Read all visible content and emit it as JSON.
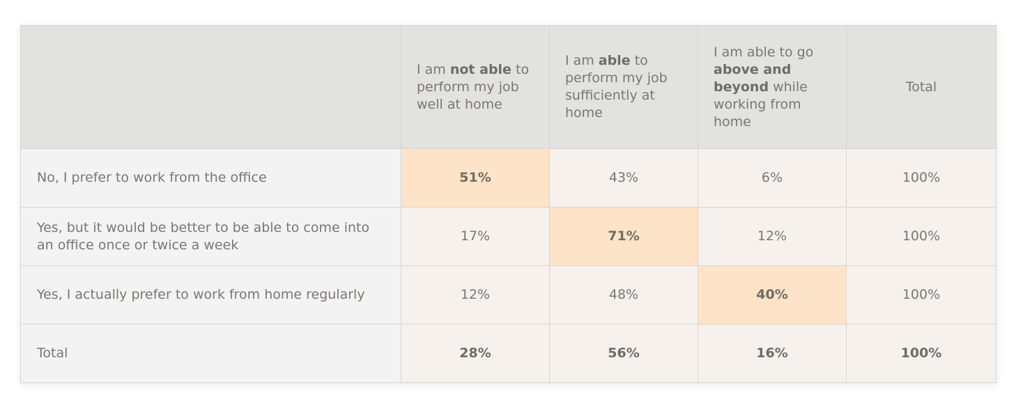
{
  "chart_data": {
    "type": "table",
    "title": "",
    "columns": [
      {
        "parts": [
          {
            "t": "I am "
          },
          {
            "t": "not able",
            "b": true
          },
          {
            "t": " to perform my job well at home"
          }
        ]
      },
      {
        "parts": [
          {
            "t": "I am "
          },
          {
            "t": "able",
            "b": true
          },
          {
            "t": " to perform my job sufficiently at home"
          }
        ]
      },
      {
        "parts": [
          {
            "t": "I am able to go "
          },
          {
            "t": "above and beyond",
            "b": true
          },
          {
            "t": " while working from home"
          }
        ]
      },
      {
        "parts": [
          {
            "t": "Total"
          }
        ]
      }
    ],
    "rows": [
      {
        "label": "No, I prefer to work from the office",
        "values": [
          "51%",
          "43%",
          "6%",
          "100%"
        ],
        "highlight": 0
      },
      {
        "label": "Yes, but it would be better to be able to come into an office once or twice a week",
        "values": [
          "17%",
          "71%",
          "12%",
          "100%"
        ],
        "highlight": 1
      },
      {
        "label": "Yes, I actually prefer to work from home regularly",
        "values": [
          "12%",
          "48%",
          "40%",
          "100%"
        ],
        "highlight": 2
      },
      {
        "label": "Total",
        "values": [
          "28%",
          "56%",
          "16%",
          "100%"
        ],
        "highlight": -1,
        "is_total": true
      }
    ],
    "colors": {
      "highlight": "#fde3c7",
      "cell": "#f6f1ec",
      "header": "#e2e2e1",
      "row_label": "#f3f3f3",
      "text": "#7a7770"
    }
  }
}
